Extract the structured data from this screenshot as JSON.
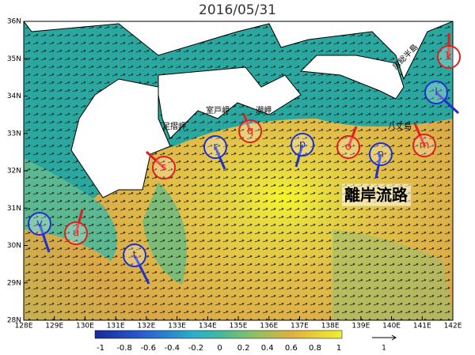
{
  "title": "2016/05/31",
  "map": {
    "lat_labels": [
      "36N",
      "35N",
      "34N",
      "33N",
      "32N",
      "31N",
      "30N",
      "29N",
      "28N"
    ],
    "lon_labels": [
      "128E",
      "129E",
      "130E",
      "131E",
      "132E",
      "133E",
      "134E",
      "135E",
      "136E",
      "137E",
      "138E",
      "139E",
      "140E",
      "141E",
      "142E"
    ],
    "colorbar_labels": [
      "-1",
      "-0.8",
      "-0.6",
      "-0.4",
      "-0.2",
      "0",
      "0.2",
      "0.4",
      "0.6",
      "0.8",
      "1"
    ],
    "reference_vector_label": "1",
    "eddies": [
      {
        "label": "k",
        "color": "red"
      },
      {
        "label": "l",
        "color": "blue"
      },
      {
        "label": "m",
        "color": "red"
      },
      {
        "label": "n",
        "color": "blue"
      },
      {
        "label": "o",
        "color": "red"
      },
      {
        "label": "p",
        "color": "blue"
      },
      {
        "label": "q",
        "color": "red"
      },
      {
        "label": "r",
        "color": "blue"
      },
      {
        "label": "s",
        "color": "red"
      },
      {
        "label": "t",
        "color": "blue"
      },
      {
        "label": "u",
        "color": "red"
      },
      {
        "label": "v",
        "color": "blue"
      }
    ],
    "places": [
      "房総半島",
      "室戸岬",
      "潮岬",
      "足摺岬",
      "八丈島",
      "離岸流路"
    ]
  }
}
